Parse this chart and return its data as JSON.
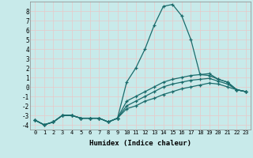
{
  "xlabel": "Humidex (Indice chaleur)",
  "bg_color": "#c8eaea",
  "grid_color": "#e8c8c8",
  "line_color": "#1a6b6b",
  "xlim": [
    -0.5,
    23.5
  ],
  "ylim": [
    -4.5,
    9.0
  ],
  "xticks": [
    0,
    1,
    2,
    3,
    4,
    5,
    6,
    7,
    8,
    9,
    10,
    11,
    12,
    13,
    14,
    15,
    16,
    17,
    18,
    19,
    20,
    21,
    22,
    23
  ],
  "yticks": [
    -4,
    -3,
    -2,
    -1,
    0,
    1,
    2,
    3,
    4,
    5,
    6,
    7,
    8
  ],
  "lines": [
    {
      "x": [
        0,
        1,
        2,
        3,
        4,
        5,
        6,
        7,
        8,
        9,
        10,
        11,
        12,
        13,
        14,
        15,
        16,
        17,
        18,
        19,
        20,
        21,
        22,
        23
      ],
      "y": [
        -3.5,
        -4.0,
        -3.7,
        -3.0,
        -3.0,
        -3.3,
        -3.3,
        -3.3,
        -3.7,
        -3.3,
        0.5,
        2.0,
        4.0,
        6.5,
        8.5,
        8.7,
        7.5,
        5.0,
        1.3,
        1.2,
        0.8,
        0.5,
        -0.3,
        -0.5
      ]
    },
    {
      "x": [
        0,
        1,
        2,
        3,
        4,
        5,
        6,
        7,
        8,
        9,
        10,
        11,
        12,
        13,
        14,
        15,
        16,
        17,
        18,
        19,
        20,
        21,
        22,
        23
      ],
      "y": [
        -3.5,
        -4.0,
        -3.7,
        -3.0,
        -3.0,
        -3.3,
        -3.3,
        -3.3,
        -3.7,
        -3.3,
        -1.5,
        -1.0,
        -0.5,
        0.0,
        0.5,
        0.8,
        1.0,
        1.2,
        1.3,
        1.4,
        0.8,
        0.5,
        -0.3,
        -0.5
      ]
    },
    {
      "x": [
        0,
        1,
        2,
        3,
        4,
        5,
        6,
        7,
        8,
        9,
        10,
        11,
        12,
        13,
        14,
        15,
        16,
        17,
        18,
        19,
        20,
        21,
        22,
        23
      ],
      "y": [
        -3.5,
        -4.0,
        -3.7,
        -3.0,
        -3.0,
        -3.3,
        -3.3,
        -3.3,
        -3.7,
        -3.3,
        -2.0,
        -1.5,
        -1.0,
        -0.5,
        0.0,
        0.3,
        0.5,
        0.7,
        0.8,
        0.9,
        0.6,
        0.3,
        -0.3,
        -0.5
      ]
    },
    {
      "x": [
        0,
        1,
        2,
        3,
        4,
        5,
        6,
        7,
        8,
        9,
        10,
        11,
        12,
        13,
        14,
        15,
        16,
        17,
        18,
        19,
        20,
        21,
        22,
        23
      ],
      "y": [
        -3.5,
        -4.0,
        -3.7,
        -3.0,
        -3.0,
        -3.3,
        -3.3,
        -3.3,
        -3.7,
        -3.3,
        -2.3,
        -2.0,
        -1.5,
        -1.2,
        -0.8,
        -0.5,
        -0.2,
        0.0,
        0.2,
        0.4,
        0.3,
        0.0,
        -0.3,
        -0.5
      ]
    }
  ]
}
